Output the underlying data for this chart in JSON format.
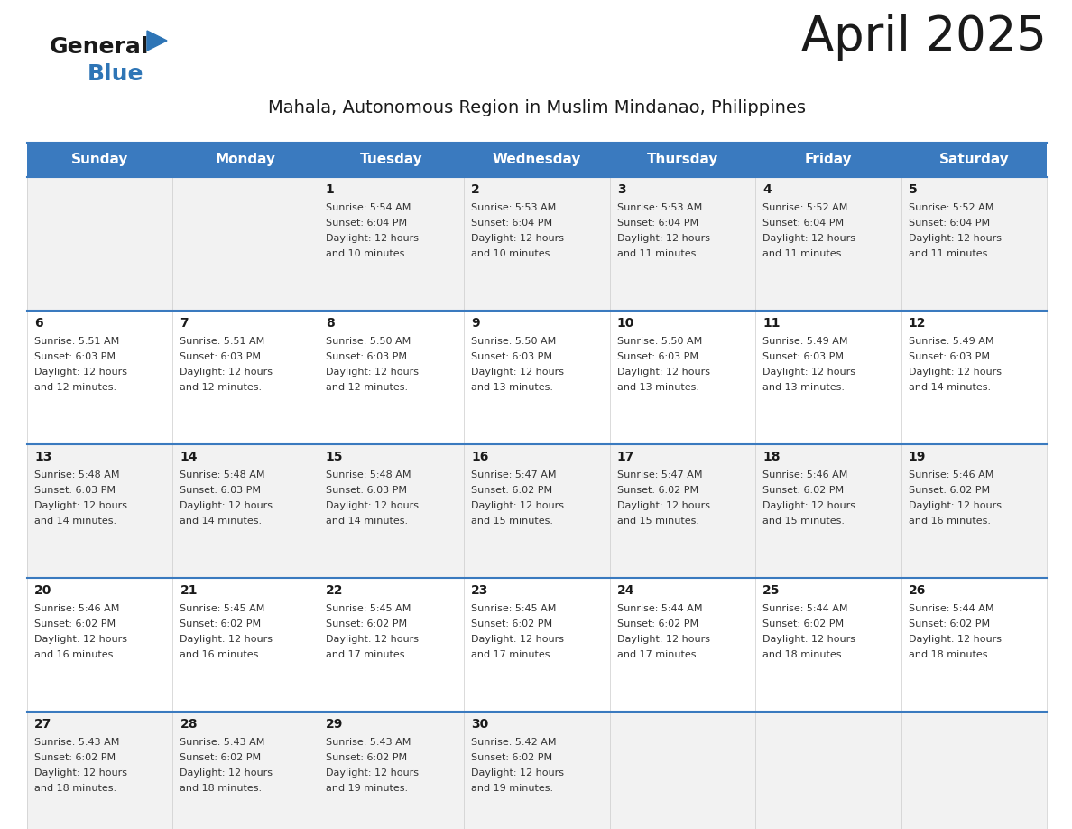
{
  "title": "April 2025",
  "subtitle": "Mahala, Autonomous Region in Muslim Mindanao, Philippines",
  "header_bg_color": "#3a7abf",
  "header_text_color": "#ffffff",
  "cell_bg_even": "#f2f2f2",
  "cell_bg_odd": "#ffffff",
  "border_color": "#3a7abf",
  "title_color": "#1a1a1a",
  "subtitle_color": "#1a1a1a",
  "text_color": "#333333",
  "day_num_color": "#1a1a1a",
  "days_of_week": [
    "Sunday",
    "Monday",
    "Tuesday",
    "Wednesday",
    "Thursday",
    "Friday",
    "Saturday"
  ],
  "calendar_data": [
    [
      {
        "day": null,
        "sunrise": null,
        "sunset": null,
        "daylight": null
      },
      {
        "day": null,
        "sunrise": null,
        "sunset": null,
        "daylight": null
      },
      {
        "day": 1,
        "sunrise": "5:54 AM",
        "sunset": "6:04 PM",
        "daylight": "12 hours and 10 minutes."
      },
      {
        "day": 2,
        "sunrise": "5:53 AM",
        "sunset": "6:04 PM",
        "daylight": "12 hours and 10 minutes."
      },
      {
        "day": 3,
        "sunrise": "5:53 AM",
        "sunset": "6:04 PM",
        "daylight": "12 hours and 11 minutes."
      },
      {
        "day": 4,
        "sunrise": "5:52 AM",
        "sunset": "6:04 PM",
        "daylight": "12 hours and 11 minutes."
      },
      {
        "day": 5,
        "sunrise": "5:52 AM",
        "sunset": "6:04 PM",
        "daylight": "12 hours and 11 minutes."
      }
    ],
    [
      {
        "day": 6,
        "sunrise": "5:51 AM",
        "sunset": "6:03 PM",
        "daylight": "12 hours and 12 minutes."
      },
      {
        "day": 7,
        "sunrise": "5:51 AM",
        "sunset": "6:03 PM",
        "daylight": "12 hours and 12 minutes."
      },
      {
        "day": 8,
        "sunrise": "5:50 AM",
        "sunset": "6:03 PM",
        "daylight": "12 hours and 12 minutes."
      },
      {
        "day": 9,
        "sunrise": "5:50 AM",
        "sunset": "6:03 PM",
        "daylight": "12 hours and 13 minutes."
      },
      {
        "day": 10,
        "sunrise": "5:50 AM",
        "sunset": "6:03 PM",
        "daylight": "12 hours and 13 minutes."
      },
      {
        "day": 11,
        "sunrise": "5:49 AM",
        "sunset": "6:03 PM",
        "daylight": "12 hours and 13 minutes."
      },
      {
        "day": 12,
        "sunrise": "5:49 AM",
        "sunset": "6:03 PM",
        "daylight": "12 hours and 14 minutes."
      }
    ],
    [
      {
        "day": 13,
        "sunrise": "5:48 AM",
        "sunset": "6:03 PM",
        "daylight": "12 hours and 14 minutes."
      },
      {
        "day": 14,
        "sunrise": "5:48 AM",
        "sunset": "6:03 PM",
        "daylight": "12 hours and 14 minutes."
      },
      {
        "day": 15,
        "sunrise": "5:48 AM",
        "sunset": "6:03 PM",
        "daylight": "12 hours and 14 minutes."
      },
      {
        "day": 16,
        "sunrise": "5:47 AM",
        "sunset": "6:02 PM",
        "daylight": "12 hours and 15 minutes."
      },
      {
        "day": 17,
        "sunrise": "5:47 AM",
        "sunset": "6:02 PM",
        "daylight": "12 hours and 15 minutes."
      },
      {
        "day": 18,
        "sunrise": "5:46 AM",
        "sunset": "6:02 PM",
        "daylight": "12 hours and 15 minutes."
      },
      {
        "day": 19,
        "sunrise": "5:46 AM",
        "sunset": "6:02 PM",
        "daylight": "12 hours and 16 minutes."
      }
    ],
    [
      {
        "day": 20,
        "sunrise": "5:46 AM",
        "sunset": "6:02 PM",
        "daylight": "12 hours and 16 minutes."
      },
      {
        "day": 21,
        "sunrise": "5:45 AM",
        "sunset": "6:02 PM",
        "daylight": "12 hours and 16 minutes."
      },
      {
        "day": 22,
        "sunrise": "5:45 AM",
        "sunset": "6:02 PM",
        "daylight": "12 hours and 17 minutes."
      },
      {
        "day": 23,
        "sunrise": "5:45 AM",
        "sunset": "6:02 PM",
        "daylight": "12 hours and 17 minutes."
      },
      {
        "day": 24,
        "sunrise": "5:44 AM",
        "sunset": "6:02 PM",
        "daylight": "12 hours and 17 minutes."
      },
      {
        "day": 25,
        "sunrise": "5:44 AM",
        "sunset": "6:02 PM",
        "daylight": "12 hours and 18 minutes."
      },
      {
        "day": 26,
        "sunrise": "5:44 AM",
        "sunset": "6:02 PM",
        "daylight": "12 hours and 18 minutes."
      }
    ],
    [
      {
        "day": 27,
        "sunrise": "5:43 AM",
        "sunset": "6:02 PM",
        "daylight": "12 hours and 18 minutes."
      },
      {
        "day": 28,
        "sunrise": "5:43 AM",
        "sunset": "6:02 PM",
        "daylight": "12 hours and 18 minutes."
      },
      {
        "day": 29,
        "sunrise": "5:43 AM",
        "sunset": "6:02 PM",
        "daylight": "12 hours and 19 minutes."
      },
      {
        "day": 30,
        "sunrise": "5:42 AM",
        "sunset": "6:02 PM",
        "daylight": "12 hours and 19 minutes."
      },
      {
        "day": null,
        "sunrise": null,
        "sunset": null,
        "daylight": null
      },
      {
        "day": null,
        "sunrise": null,
        "sunset": null,
        "daylight": null
      },
      {
        "day": null,
        "sunrise": null,
        "sunset": null,
        "daylight": null
      }
    ]
  ],
  "logo_text1": "General",
  "logo_text2": "Blue",
  "logo_color1": "#1a1a1a",
  "logo_color2": "#2e75b6",
  "logo_triangle_color": "#2e75b6",
  "title_fontsize": 38,
  "subtitle_fontsize": 14,
  "header_fontsize": 11,
  "daynum_fontsize": 10,
  "cell_fontsize": 8
}
